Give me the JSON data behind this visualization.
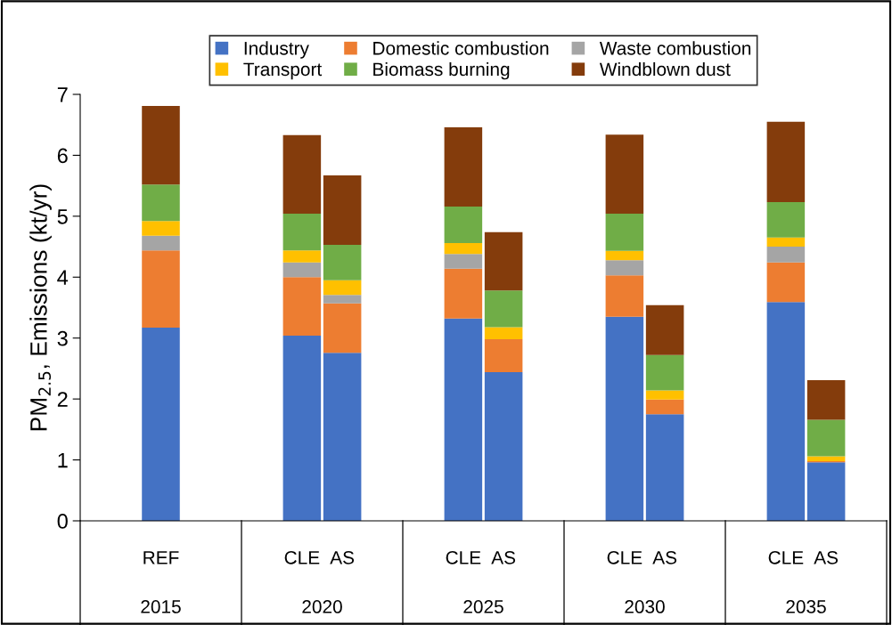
{
  "chart_data": {
    "type": "bar",
    "stacked": true,
    "ylabel": "PM$_{2.5}$, Emissions (kt/yr)",
    "categories": [
      "REF",
      "CLE",
      "AS",
      "CLE",
      "AS",
      "CLE",
      "AS",
      "CLE",
      "AS"
    ],
    "annotations": [
      "2015",
      "2020",
      "2025",
      "2030",
      "2035"
    ],
    "series": [
      {
        "name": "Industry",
        "color": "#4472c4",
        "values": [
          3.17,
          3.04,
          2.76,
          3.32,
          2.44,
          3.35,
          1.75,
          3.59,
          0.96
        ]
      },
      {
        "name": "Domestic combustion",
        "color": "#ed7d31",
        "values": [
          1.27,
          0.96,
          0.81,
          0.82,
          0.54,
          0.68,
          0.24,
          0.65,
          0.02
        ]
      },
      {
        "name": "Waste combustion",
        "color": "#a5a5a5",
        "values": [
          0.24,
          0.24,
          0.14,
          0.24,
          null,
          0.25,
          null,
          0.26,
          null
        ]
      },
      {
        "name": "Transport",
        "color": "#ffc000",
        "values": [
          0.24,
          0.2,
          0.24,
          0.18,
          0.2,
          0.15,
          0.15,
          0.15,
          0.08
        ]
      },
      {
        "name": "Biomass burning",
        "color": "#70ad47",
        "values": [
          0.6,
          0.6,
          0.58,
          0.6,
          0.6,
          0.61,
          0.58,
          0.58,
          0.6
        ]
      },
      {
        "name": "Windblown dust",
        "color": "#843c0c",
        "values": [
          1.29,
          1.29,
          1.14,
          1.3,
          0.96,
          1.3,
          0.82,
          1.32,
          0.65
        ]
      }
    ],
    "ylim": [
      0,
      7
    ],
    "yticks": [
      0,
      1,
      2,
      3,
      4,
      5,
      6,
      7
    ],
    "grid": false,
    "legend": "top"
  }
}
